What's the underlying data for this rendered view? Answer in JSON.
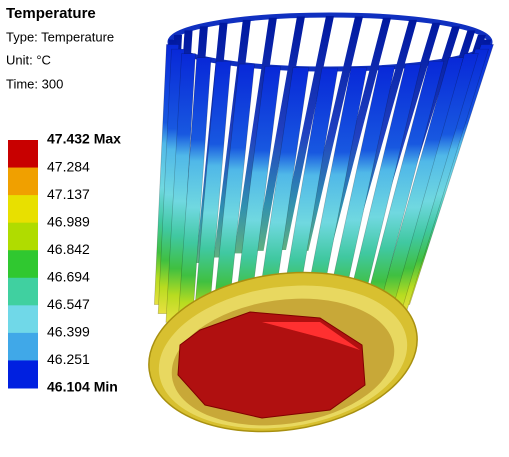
{
  "header": {
    "title": "Temperature",
    "type_line": "Type: Temperature",
    "unit_line": "Unit: °C",
    "time_line": "Time: 300"
  },
  "legend": {
    "labels": [
      "47.432 Max",
      "47.284",
      "47.137",
      "46.989",
      "46.842",
      "46.694",
      "46.547",
      "46.399",
      "46.251",
      "46.104 Min"
    ],
    "colors": [
      "#c80000",
      "#f0a000",
      "#e8e000",
      "#b0dc00",
      "#30c830",
      "#40d0a0",
      "#70d8e8",
      "#40a8e8",
      "#0020e0"
    ]
  }
}
